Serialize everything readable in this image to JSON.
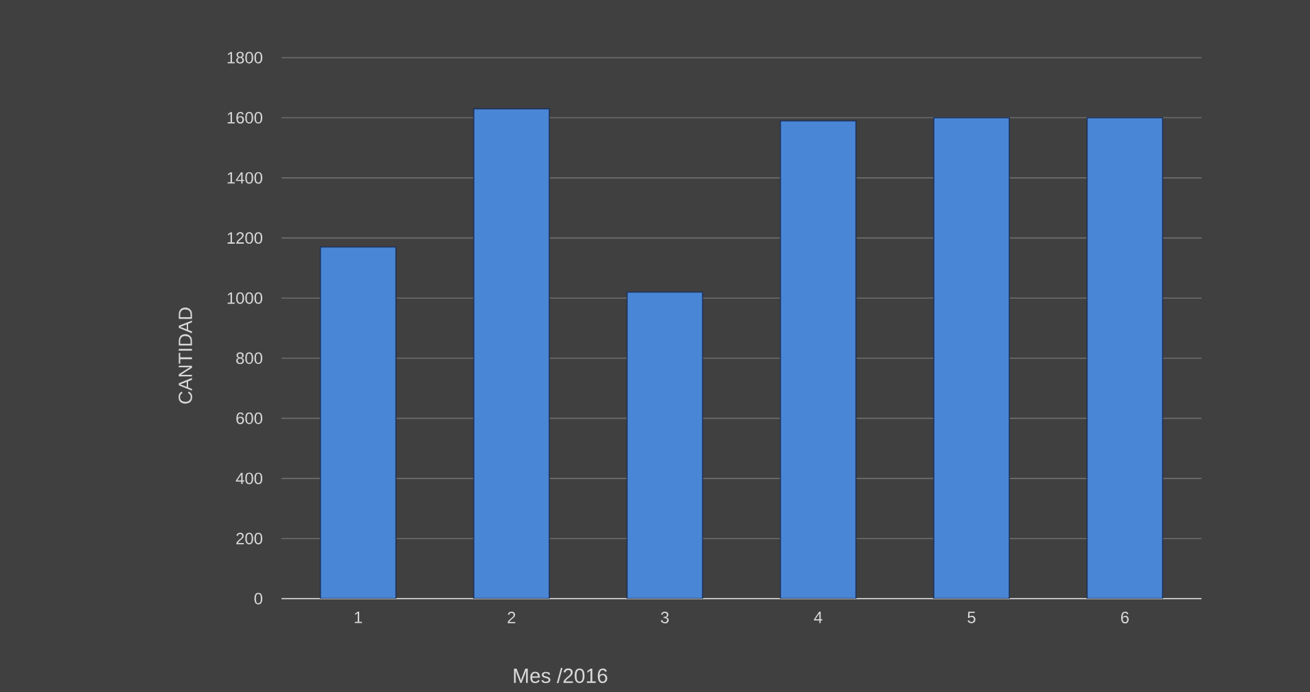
{
  "chart_data": {
    "type": "bar",
    "xlabel": "Mes /2016",
    "ylabel": "CANTIDAD",
    "categories": [
      "1",
      "2",
      "3",
      "4",
      "5",
      "6"
    ],
    "values": [
      1170,
      1630,
      1020,
      1590,
      1600,
      1600
    ],
    "color": "#4a86d6",
    "ylim": [
      0,
      1800
    ],
    "yticks": [
      0,
      200,
      400,
      600,
      800,
      1000,
      1200,
      1400,
      1600,
      1800
    ],
    "grid": "y"
  }
}
